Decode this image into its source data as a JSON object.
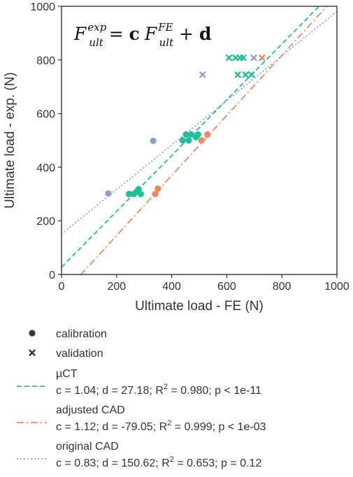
{
  "chart_data": {
    "type": "scatter",
    "xlabel": "Ultimate load - FE (N)",
    "ylabel": "Ultimate load - exp. (N)",
    "xlim": [
      0,
      1000
    ],
    "ylim": [
      0,
      1000
    ],
    "xticks": [
      "0",
      "200",
      "400",
      "600",
      "800",
      "1000"
    ],
    "yticks": [
      "0",
      "200",
      "400",
      "600",
      "800",
      "1000"
    ],
    "grid": false,
    "legend_position": "below plot",
    "formula": {
      "lhs_base": "F",
      "lhs_sup": "exp",
      "lhs_sub": "ult",
      "equals": "=",
      "coef": "c",
      "rhs_base": "F",
      "rhs_sup": "FE",
      "rhs_sub": "ult",
      "plus": "+",
      "offset": "d"
    },
    "series": [
      {
        "name": "µCT",
        "color": "#1fbf9a",
        "line_style": "dashed",
        "fit": {
          "c": 1.04,
          "d": 27.18
        },
        "legend_stats": {
          "pre": "c = 1.04; d = 27.18; R",
          "sup": "2",
          "post": " = 0.980; p < 1e-11"
        },
        "calibration": [
          [
            245,
            300
          ],
          [
            262,
            300
          ],
          [
            272,
            308
          ],
          [
            280,
            318
          ],
          [
            288,
            300
          ],
          [
            440,
            500
          ],
          [
            452,
            522
          ],
          [
            462,
            500
          ],
          [
            470,
            522
          ],
          [
            488,
            512
          ],
          [
            496,
            522
          ]
        ],
        "validation": [
          [
            608,
            808
          ],
          [
            632,
            808
          ],
          [
            648,
            808
          ],
          [
            660,
            808
          ],
          [
            640,
            745
          ],
          [
            668,
            745
          ],
          [
            690,
            745
          ]
        ]
      },
      {
        "name": "adjusted CAD",
        "color": "#f5865a",
        "line_style": "dashdot",
        "fit": {
          "c": 1.12,
          "d": -79.05
        },
        "legend_stats": {
          "pre": "c = 1.12; d = -79.05; R",
          "sup": "2",
          "post": " = 0.999; p < 1e-03"
        },
        "calibration": [
          [
            340,
            300
          ],
          [
            350,
            320
          ],
          [
            508,
            500
          ],
          [
            530,
            522
          ]
        ],
        "validation": [
          [
            728,
            808
          ]
        ]
      },
      {
        "name": "original CAD",
        "color": "#8ca0cf",
        "line_style": "dotted",
        "fit": {
          "c": 0.83,
          "d": 150.62
        },
        "legend_stats": {
          "pre": "c = 0.83; d = 150.62; R",
          "sup": "2",
          "post": " = 0.653; p = 0.12"
        },
        "calibration": [
          [
            170,
            302
          ],
          [
            333,
            498
          ]
        ],
        "validation": [
          [
            512,
            745
          ],
          [
            698,
            808
          ]
        ]
      }
    ],
    "marker_legend": [
      {
        "label": "calibration",
        "marker": "circle"
      },
      {
        "label": "validation",
        "marker": "x"
      }
    ],
    "marker_legend_color": "#333333"
  }
}
